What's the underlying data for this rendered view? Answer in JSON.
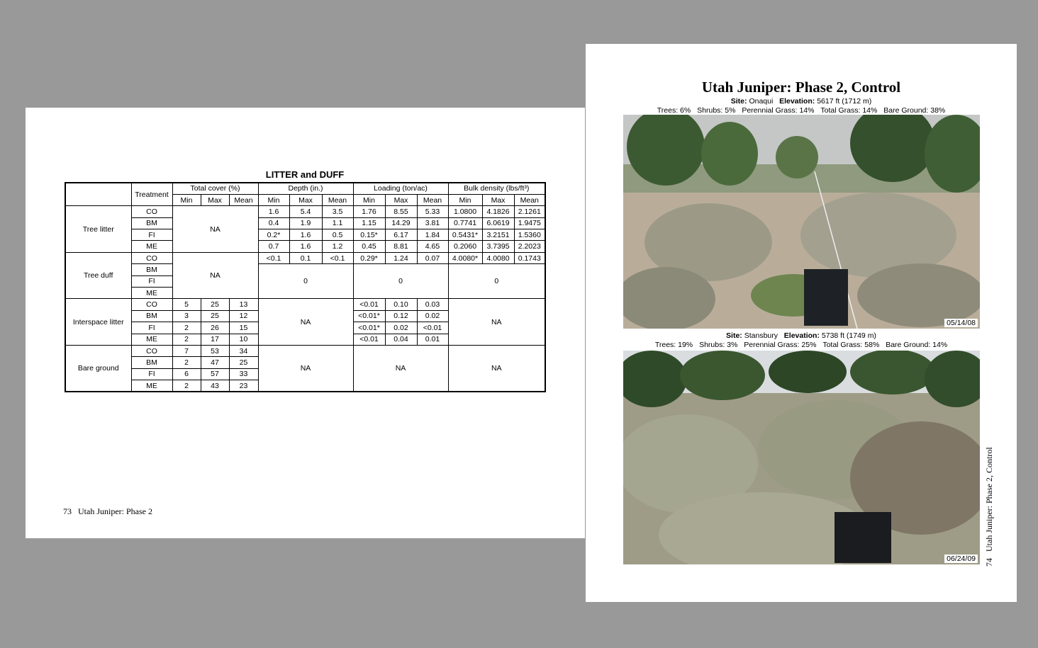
{
  "left_page": {
    "table": {
      "title": "LITTER and DUFF",
      "header": {
        "treatment": "Treatment",
        "groups": [
          "Total cover (%)",
          "Depth (in.)",
          "Loading (ton/ac)",
          "Bulk density (lbs/ft³)"
        ],
        "sub": [
          "Min",
          "Max",
          "Mean"
        ]
      },
      "na": "NA",
      "zero": "0",
      "categories": [
        "Tree litter",
        "Tree duff",
        "Interspace litter",
        "Bare ground"
      ],
      "treatments": [
        "CO",
        "BM",
        "FI",
        "ME"
      ],
      "tree_litter": [
        [
          "1.6",
          "5.4",
          "3.5",
          "1.76",
          "8.55",
          "5.33",
          "1.0800",
          "4.1826",
          "2.1261"
        ],
        [
          "0.4",
          "1.9",
          "1.1",
          "1.15",
          "14.29",
          "3.81",
          "0.7741",
          "6.0619",
          "1.9475"
        ],
        [
          "0.2*",
          "1.6",
          "0.5",
          "0.15*",
          "6.17",
          "1.84",
          "0.5431*",
          "3.2151",
          "1.5360"
        ],
        [
          "0.7",
          "1.6",
          "1.2",
          "0.45",
          "8.81",
          "4.65",
          "0.2060",
          "3.7395",
          "2.2023"
        ]
      ],
      "tree_duff_co": [
        "<0.1",
        "0.1",
        "<0.1",
        "0.29*",
        "1.24",
        "0.07",
        "4.0080*",
        "4.0080",
        "0.1743"
      ],
      "interspace_cover": [
        [
          "5",
          "25",
          "13"
        ],
        [
          "3",
          "25",
          "12"
        ],
        [
          "2",
          "26",
          "15"
        ],
        [
          "2",
          "17",
          "10"
        ]
      ],
      "interspace_loading": [
        [
          "<0.01",
          "0.10",
          "0.03"
        ],
        [
          "<0.01*",
          "0.12",
          "0.02"
        ],
        [
          "<0.01*",
          "0.02",
          "<0.01"
        ],
        [
          "<0.01",
          "0.04",
          "0.01"
        ]
      ],
      "bare_cover": [
        [
          "7",
          "53",
          "34"
        ],
        [
          "2",
          "47",
          "25"
        ],
        [
          "6",
          "57",
          "33"
        ],
        [
          "2",
          "43",
          "23"
        ]
      ]
    },
    "footer": {
      "page": "73",
      "text": "Utah Juniper: Phase 2"
    }
  },
  "right_page": {
    "title": "Utah Juniper: Phase 2, Control",
    "photos": [
      {
        "site_label": "Site:",
        "site": "Onaqui",
        "elev_label": "Elevation:",
        "elev": "5617 ft (1712 m)",
        "cover": [
          "Trees: 6%",
          "Shrubs: 5%",
          "Perennial Grass: 14%",
          "Total Grass: 14%",
          "Bare Ground: 38%"
        ],
        "date": "05/14/08"
      },
      {
        "site_label": "Site:",
        "site": "Stansbury",
        "elev_label": "Elevation:",
        "elev": "5738 ft (1749 m)",
        "cover": [
          "Trees: 19%",
          "Shrubs: 3%",
          "Perennial Grass: 25%",
          "Total Grass: 58%",
          "Bare Ground: 14%"
        ],
        "date": "06/24/09"
      }
    ],
    "footer": {
      "page": "74",
      "text": "Utah Juniper: Phase 2, Control"
    }
  }
}
